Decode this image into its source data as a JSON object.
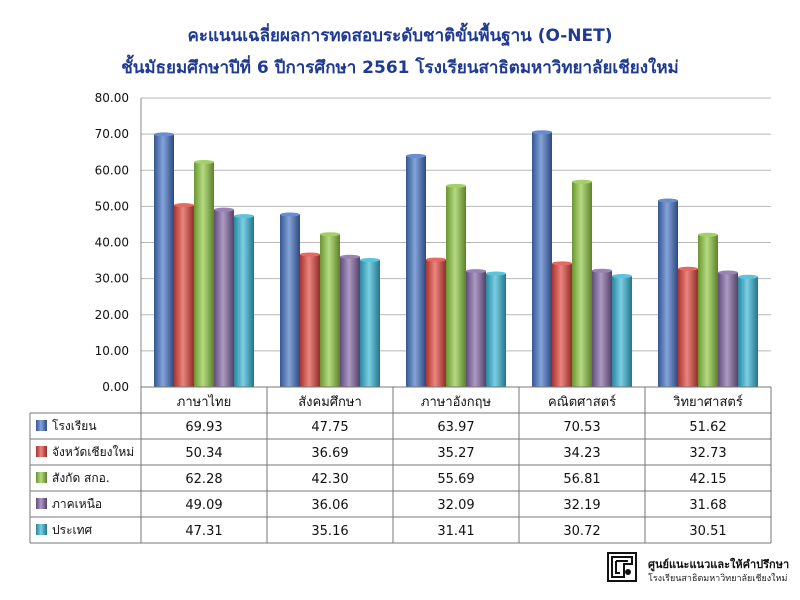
{
  "title_line1": "คะแนนเฉลี่ยผลการทดสอบระดับชาติขั้นพื้นฐาน (O-NET)",
  "title_line2": "ชั้นมัธยมศึกษาปีที่ 6 ปีการศึกษา 2561 โรงเรียนสาธิตมหาวิทยาลัยเชียงใหม่",
  "footer": {
    "line1": "ศูนย์แนะแนวและให้คำปรึกษา",
    "line2": "โรงเรียนสาธิตมหาวิทยาลัยเชียงใหม่",
    "logo_icon": "school-logo-icon"
  },
  "chart_data": {
    "type": "bar",
    "categories": [
      "ภาษาไทย",
      "สังคมศึกษา",
      "ภาษาอังกฤษ",
      "คณิตศาสตร์",
      "วิทยาศาสตร์"
    ],
    "ylim": [
      0,
      80
    ],
    "yticks": [
      "0.00",
      "10.00",
      "20.00",
      "30.00",
      "40.00",
      "50.00",
      "60.00",
      "70.00",
      "80.00"
    ],
    "grid": true,
    "series": [
      {
        "name": "โรงเรียน",
        "color": "#4472c4",
        "values": [
          69.93,
          47.75,
          63.97,
          70.53,
          51.62
        ],
        "labels": [
          "69.93",
          "47.75",
          "63.97",
          "70.53",
          "51.62"
        ]
      },
      {
        "name": "จังหวัดเชียงใหม่",
        "color": "#e0443a",
        "values": [
          50.34,
          36.69,
          35.27,
          34.23,
          32.73
        ],
        "labels": [
          "50.34",
          "36.69",
          "35.27",
          "34.23",
          "32.73"
        ]
      },
      {
        "name": "สังกัด สกอ.",
        "color": "#8dc63f",
        "values": [
          62.28,
          42.3,
          55.69,
          56.81,
          42.15
        ],
        "labels": [
          "62.28",
          "42.30",
          "55.69",
          "56.81",
          "42.15"
        ]
      },
      {
        "name": "ภาคเหนือ",
        "color": "#8064a2",
        "values": [
          49.09,
          36.06,
          32.09,
          32.19,
          31.68
        ],
        "labels": [
          "49.09",
          "36.06",
          "32.09",
          "32.19",
          "31.68"
        ]
      },
      {
        "name": "ประเทศ",
        "color": "#34b4d4",
        "values": [
          47.31,
          35.16,
          31.41,
          30.72,
          30.51
        ],
        "labels": [
          "47.31",
          "35.16",
          "31.41",
          "30.72",
          "30.51"
        ]
      }
    ]
  }
}
